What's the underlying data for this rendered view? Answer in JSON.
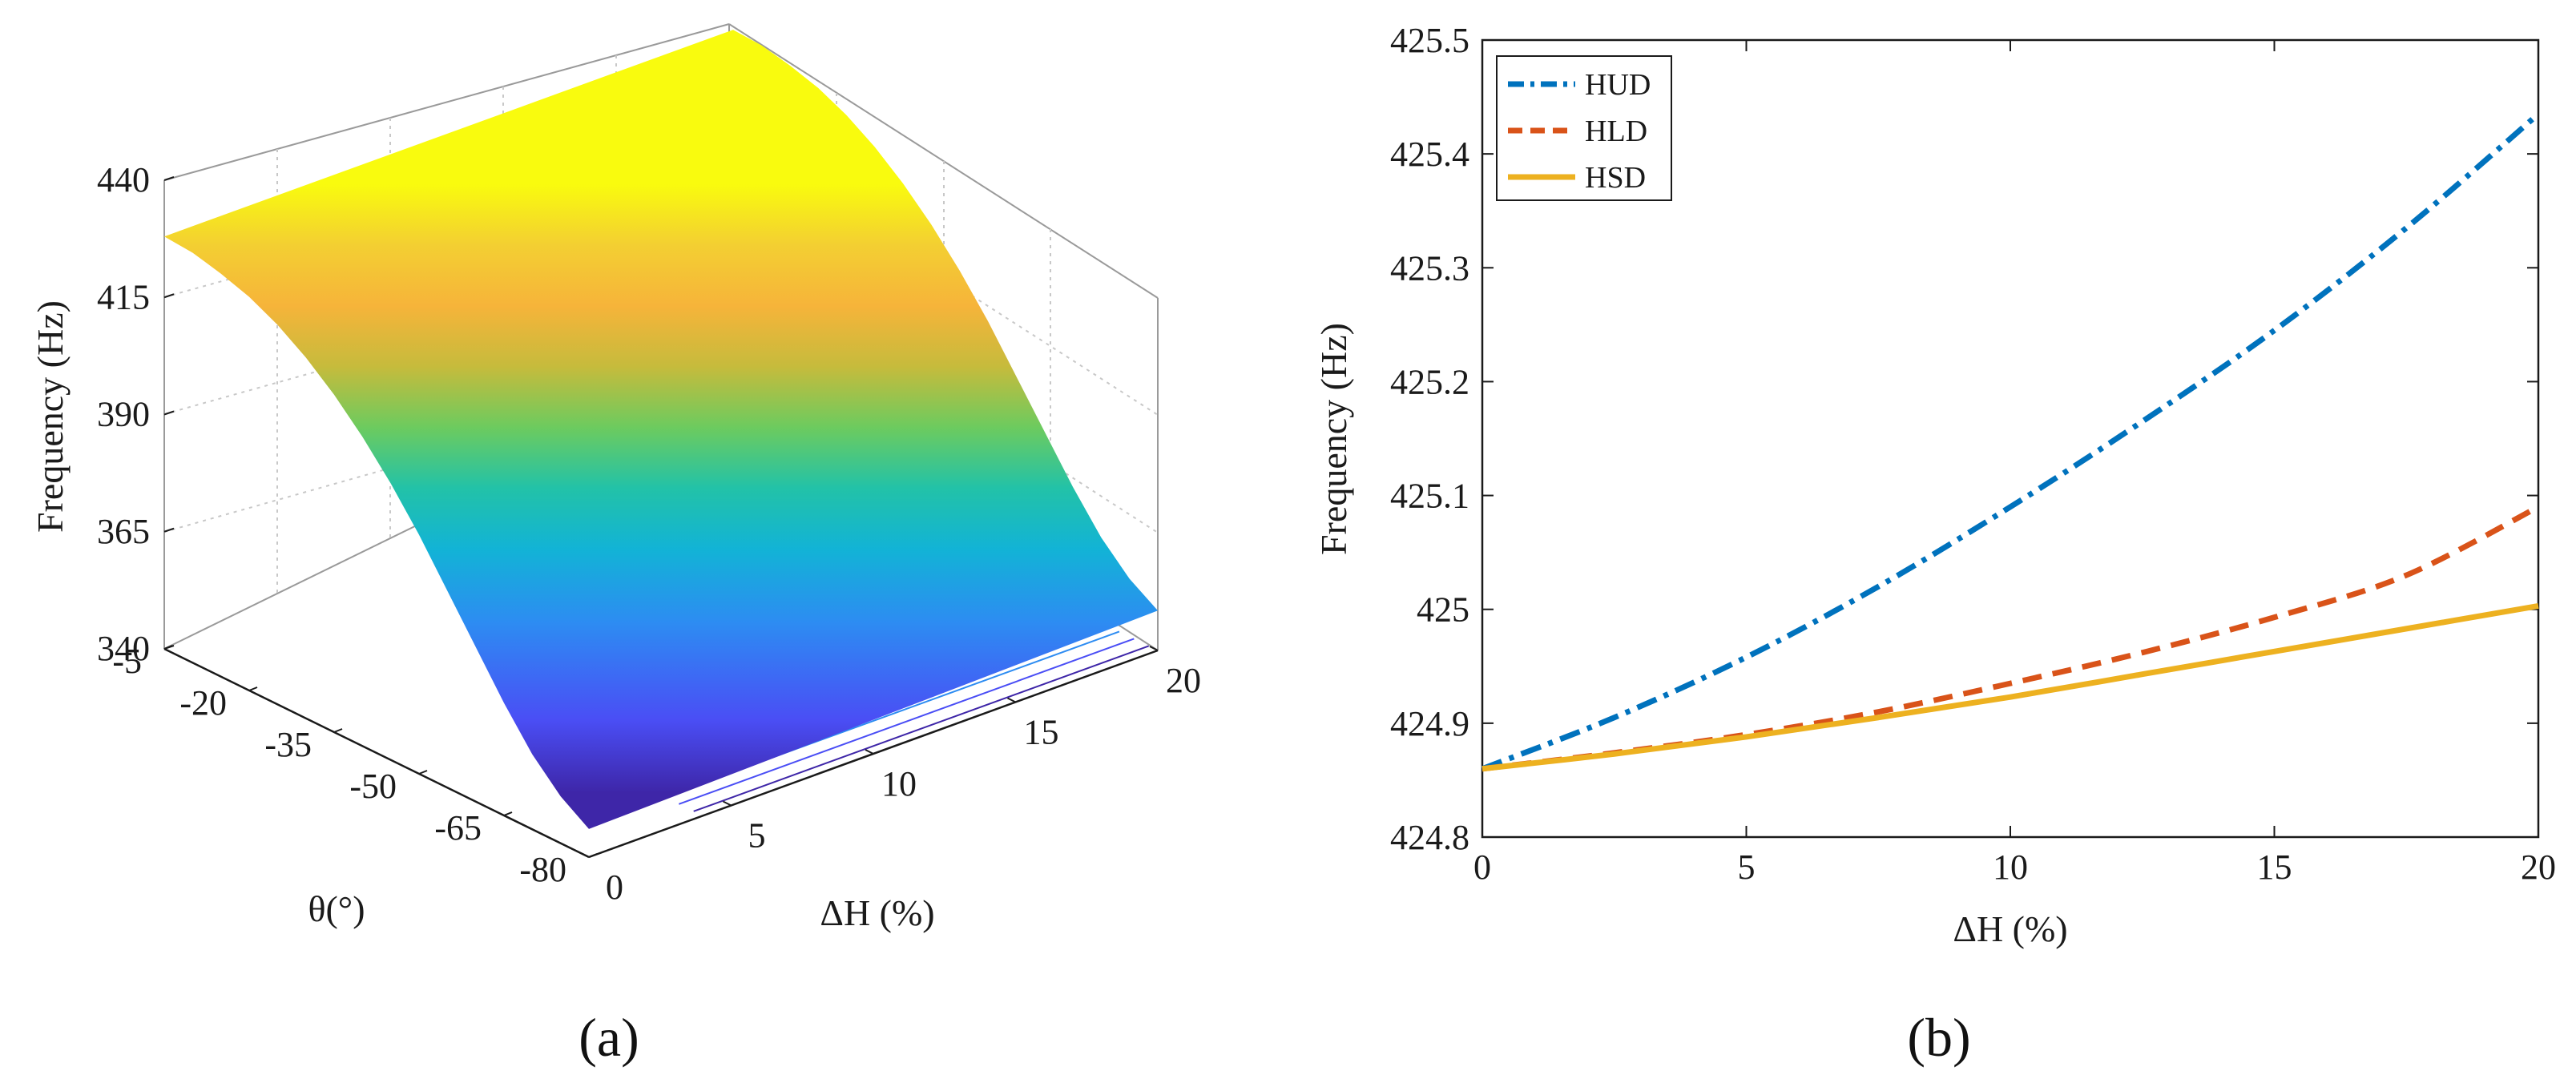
{
  "chart_data": [
    {
      "panel": "(a)",
      "type": "surface",
      "zlabel": "Frequency (Hz)",
      "xlabel": "ΔH (%)",
      "ylabel": "θ(°)",
      "zticks": [
        "340",
        "365",
        "390",
        "415",
        "440"
      ],
      "zlim": [
        340,
        440
      ],
      "theta_ticks": [
        "-5",
        "-20",
        "-35",
        "-50",
        "-65",
        "-80"
      ],
      "theta_lim": [
        -80,
        -5
      ],
      "dh_ticks": [
        "0",
        "5",
        "10",
        "15",
        "20"
      ],
      "dh_lim": [
        0,
        20
      ],
      "surface_theta": [
        -5,
        -10,
        -15,
        -20,
        -25,
        -30,
        -35,
        -40,
        -45,
        -50,
        -55,
        -60,
        -65,
        -70,
        -75,
        -80
      ],
      "surface_freq": [
        428,
        427.5,
        426,
        424,
        421,
        417,
        412,
        406,
        399,
        391,
        382,
        373,
        364,
        356,
        350,
        346
      ],
      "contour_levels": 10,
      "grid": true,
      "colormap": [
        "#3e26a8",
        "#4a4ef5",
        "#2d8cf2",
        "#12b3d6",
        "#22c2a8",
        "#6ccb5f",
        "#c6bb3c",
        "#f6b43a",
        "#f3cf32",
        "#f9fb0e"
      ]
    },
    {
      "panel": "(b)",
      "type": "line",
      "xlabel": "ΔH (%)",
      "ylabel": "Frequency (Hz)",
      "xlim": [
        0,
        20
      ],
      "ylim": [
        424.8,
        425.5
      ],
      "xticks": [
        "0",
        "5",
        "10",
        "15",
        "20"
      ],
      "yticks": [
        "424.8",
        "424.9",
        "425",
        "425.1",
        "425.2",
        "425.3",
        "425.4",
        "425.5"
      ],
      "legend_position": "top-left",
      "series": [
        {
          "name": "HUD",
          "style": "dash-dot",
          "color": "#0072bd",
          "x": [
            0,
            2.5,
            5,
            7.5,
            10,
            12.5,
            15,
            17.5,
            20
          ],
          "y": [
            424.86,
            424.905,
            424.958,
            425.02,
            425.09,
            425.165,
            425.245,
            425.335,
            425.435
          ]
        },
        {
          "name": "HLD",
          "style": "dashed",
          "color": "#d95319",
          "x": [
            0,
            2.5,
            5,
            7.5,
            10,
            12.5,
            15,
            17.5,
            20
          ],
          "y": [
            424.86,
            424.874,
            424.89,
            424.91,
            424.935,
            424.962,
            424.993,
            425.03,
            425.09
          ]
        },
        {
          "name": "HSD",
          "style": "solid",
          "color": "#edb120",
          "x": [
            0,
            2.5,
            5,
            7.5,
            10,
            12.5,
            15,
            17.5,
            20
          ],
          "y": [
            424.86,
            424.873,
            424.888,
            424.905,
            424.923,
            424.943,
            424.963,
            424.983,
            425.003
          ]
        }
      ]
    }
  ],
  "labels": {
    "panel_a": "(a)",
    "panel_b": "(b)"
  }
}
